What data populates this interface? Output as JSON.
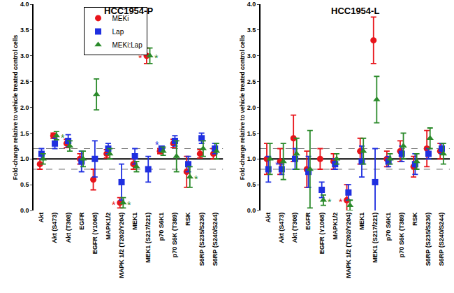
{
  "chart_data": [
    {
      "type": "scatter",
      "title": "HCC1954-P",
      "y_label": "Fold-change relative to vehicle treated control cells",
      "categories": [
        "Akt",
        "Akt (S473)",
        "Akt (T308)",
        "EGFR",
        "EGFR (Y1068)",
        "MAPK1/2",
        "MAPK 1/2 (T202/Y204)",
        "MEK1",
        "MEK1 (S217/221)",
        "p70 S6K1",
        "p70 S6K (T389)",
        "RSK",
        "S6RP (S235/S236)",
        "S6RP (S240/S244)"
      ],
      "series": [
        {
          "name": "MEKi",
          "color": "#e8141b",
          "marker": "circle",
          "values": [
            0.9,
            1.45,
            1.3,
            1.0,
            0.6,
            1.1,
            0.15,
            0.9,
            3.0,
            1.15,
            1.3,
            0.75,
            1.1,
            1.1
          ],
          "errors": [
            0.1,
            0.05,
            0.08,
            0.1,
            0.2,
            0.08,
            0.1,
            0.1,
            0.15,
            0.05,
            0.08,
            0.3,
            0.08,
            0.1
          ]
        },
        {
          "name": "Lap",
          "color": "#1f2fe0",
          "marker": "square",
          "values": [
            1.1,
            1.3,
            1.35,
            0.95,
            1.0,
            1.2,
            0.55,
            1.05,
            0.8,
            1.2,
            1.35,
            0.9,
            1.4,
            1.2
          ],
          "errors": [
            0.1,
            0.1,
            0.12,
            0.2,
            0.35,
            0.1,
            0.35,
            0.15,
            0.25,
            0.05,
            0.1,
            0.15,
            0.1,
            0.1
          ]
        },
        {
          "name": "MEKi:Lap",
          "color": "#2a8a2a",
          "marker": "triangle",
          "values": [
            1.0,
            1.45,
            1.25,
            1.0,
            2.25,
            1.1,
            0.15,
            0.85,
            3.0,
            1.15,
            1.05,
            0.65,
            1.2,
            1.15
          ],
          "errors": [
            0.1,
            0.08,
            0.1,
            0.15,
            0.3,
            0.1,
            0.1,
            0.1,
            0.15,
            0.08,
            0.3,
            0.2,
            0.15,
            0.15
          ]
        }
      ],
      "annotations": [
        {
          "text": "*",
          "category": "Akt (S473)",
          "series": "MEKi:Lap"
        },
        {
          "text": "*",
          "category": "MAPK 1/2 (T202/Y204)",
          "series": "MEKi"
        },
        {
          "text": "*",
          "category": "MAPK 1/2 (T202/Y204)",
          "series": "MEKi:Lap"
        },
        {
          "text": "*",
          "category": "MEK1 (S217/221)",
          "series": "MEKi"
        },
        {
          "text": "*",
          "category": "MEK1 (S217/221)",
          "series": "MEKi:Lap"
        },
        {
          "text": "*",
          "category": "p70 S6K1",
          "series": "Lap"
        },
        {
          "text": "*",
          "category": "RSK",
          "series": "MEKi:Lap"
        }
      ],
      "reference_lines": [
        {
          "value": 0.8,
          "line_style": "dashed"
        },
        {
          "value": 1,
          "line_style": "solid"
        },
        {
          "value": 1.2,
          "line_style": "dashed"
        }
      ],
      "ylim": [
        0,
        4
      ],
      "yticks": [
        {
          "value": 0,
          "label": "0.0"
        },
        {
          "value": 0.5,
          "label": "0.5"
        },
        {
          "value": 1,
          "label": "1.0"
        },
        {
          "value": 1.5,
          "label": "1.5"
        },
        {
          "value": 2,
          "label": "2.0"
        },
        {
          "value": 2.5,
          "label": "2.5"
        },
        {
          "value": 3,
          "label": "3.0"
        },
        {
          "value": 3.5,
          "label": "3.5"
        },
        {
          "value": 4,
          "label": "4.0"
        }
      ],
      "grid": false,
      "legend": "upper left"
    },
    {
      "type": "scatter",
      "title": "HCC1954-L",
      "y_label": "Fold-change relative to vehicle treated control cells",
      "categories": [
        "Akt",
        "Akt (S473)",
        "Akt (T308)",
        "EGFR",
        "EGFR (Y1068)",
        "MAPK1/2",
        "MAPK 1/2 (T202/Y204)",
        "MEK1",
        "MEK1 (S217/221)",
        "p70 S6K1",
        "p70 S6K (T389)",
        "RSK",
        "S6RP (S235/S236)",
        "S6RP (S240/S244)"
      ],
      "series": [
        {
          "name": "MEKi",
          "color": "#e8141b",
          "marker": "circle",
          "values": [
            1.0,
            0.95,
            1.4,
            0.8,
            1.0,
            0.95,
            0.2,
            1.15,
            3.3,
            1.0,
            1.15,
            0.85,
            1.2,
            1.15
          ],
          "errors": [
            0.3,
            0.25,
            0.45,
            0.35,
            0.2,
            0.15,
            0.3,
            0.25,
            0.45,
            0.15,
            0.2,
            0.2,
            0.35,
            0.15
          ]
        },
        {
          "name": "Lap",
          "color": "#1f2fe0",
          "marker": "square",
          "values": [
            0.8,
            0.8,
            1.0,
            0.75,
            0.4,
            0.9,
            0.35,
            0.95,
            0.55,
            0.95,
            1.1,
            0.9,
            1.1,
            1.2
          ],
          "errors": [
            0.25,
            0.1,
            0.2,
            0.3,
            0.15,
            0.1,
            0.15,
            0.3,
            0.65,
            0.1,
            0.15,
            0.2,
            0.1,
            0.1
          ]
        },
        {
          "name": "MEKi:Lap",
          "color": "#2a8a2a",
          "marker": "triangle",
          "values": [
            1.0,
            0.95,
            1.1,
            0.8,
            0.2,
            1.0,
            0.1,
            1.15,
            2.15,
            1.0,
            1.25,
            0.95,
            1.4,
            1.1
          ],
          "errors": [
            0.3,
            0.35,
            0.3,
            0.75,
            0.1,
            0.1,
            0.1,
            0.25,
            0.45,
            0.1,
            0.25,
            0.15,
            0.2,
            0.2
          ]
        }
      ],
      "annotations": [
        {
          "text": "*",
          "category": "Akt (S473)",
          "series": "Lap"
        },
        {
          "text": "*",
          "category": "EGFR (Y1068)",
          "series": "MEKi:Lap"
        },
        {
          "text": "*",
          "category": "MAPK 1/2 (T202/Y204)",
          "series": "MEKi"
        }
      ],
      "reference_lines": [
        {
          "value": 0.8,
          "line_style": "dashed"
        },
        {
          "value": 1,
          "line_style": "solid"
        },
        {
          "value": 1.2,
          "line_style": "dashed"
        }
      ],
      "ylim": [
        0,
        4
      ],
      "yticks": [
        {
          "value": 0,
          "label": "0.0"
        },
        {
          "value": 0.5,
          "label": "0.5"
        },
        {
          "value": 1,
          "label": "1.0"
        },
        {
          "value": 1.5,
          "label": "1.5"
        },
        {
          "value": 2,
          "label": "2.0"
        },
        {
          "value": 2.5,
          "label": "2.5"
        },
        {
          "value": 3,
          "label": "3.0"
        },
        {
          "value": 3.5,
          "label": "3.5"
        },
        {
          "value": 4,
          "label": "4.0"
        }
      ],
      "grid": false
    }
  ]
}
